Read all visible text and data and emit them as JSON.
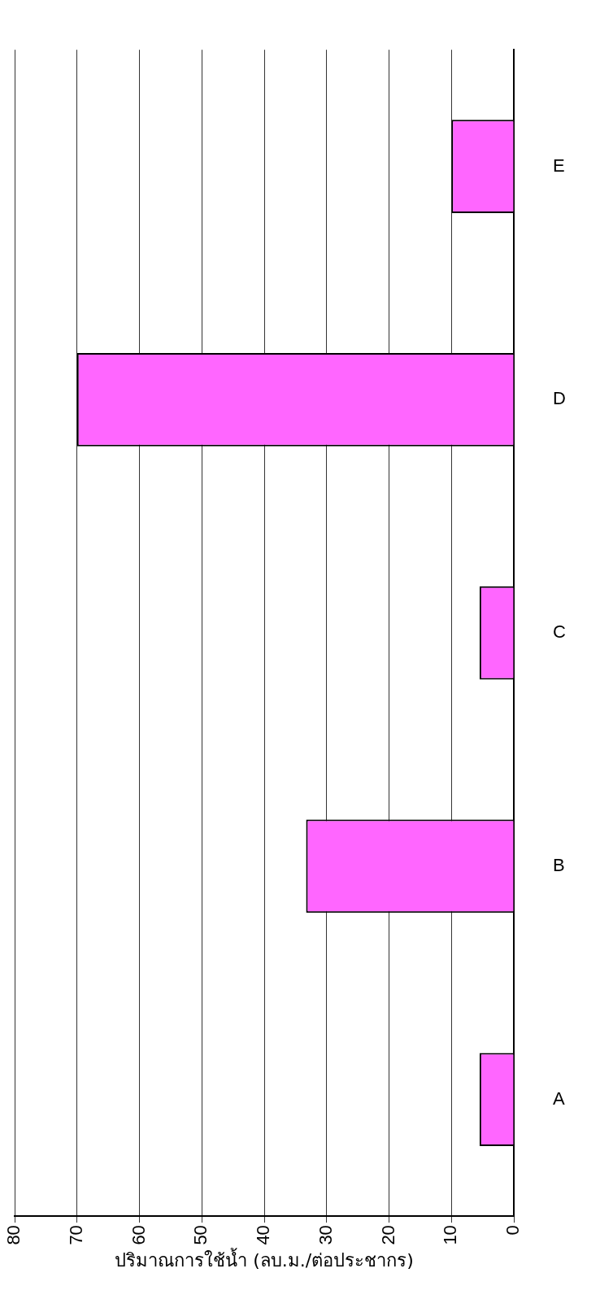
{
  "chart_data": {
    "type": "bar",
    "orientation": "horizontal",
    "categories": [
      "E",
      "D",
      "C",
      "B",
      "A"
    ],
    "values": [
      10,
      70,
      5.5,
      33.3,
      5.5
    ],
    "color": "#ff66ff",
    "xlabel": "ปริมาณการใช้น้ำ (ลบ.ม./ต่อประชากร)",
    "xlim": [
      80,
      0
    ],
    "xticks": [
      80,
      70,
      60,
      50,
      40,
      30,
      20,
      10,
      0
    ],
    "grid": "x",
    "legend": false
  }
}
